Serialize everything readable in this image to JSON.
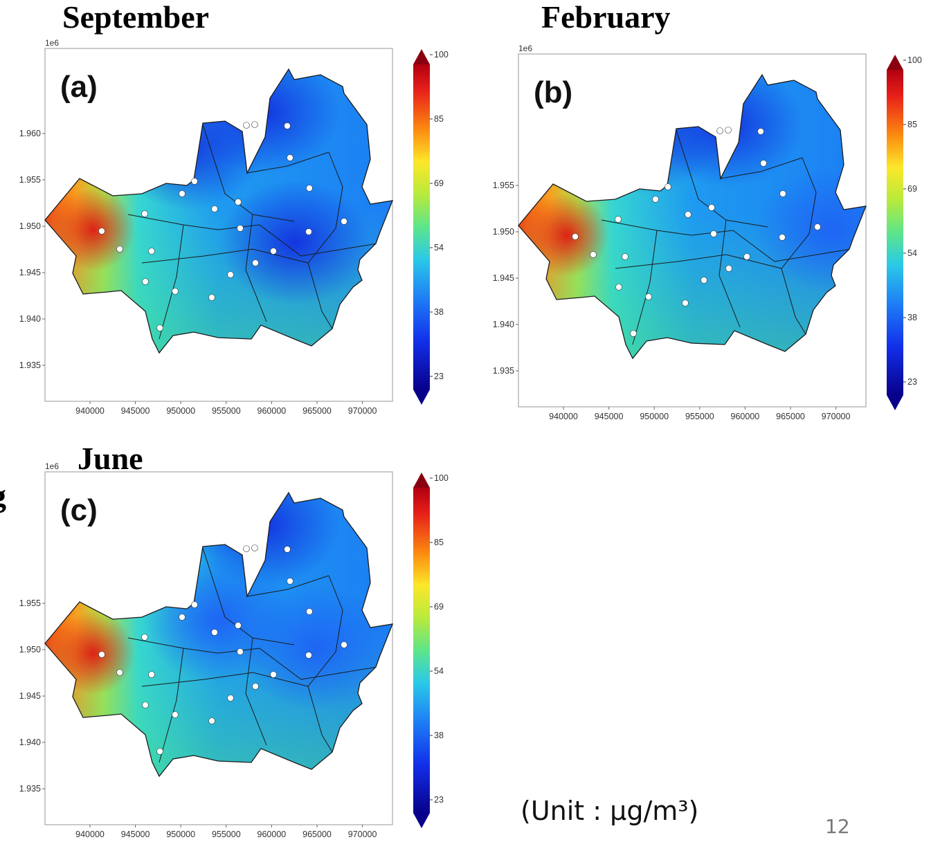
{
  "titles": {
    "a": "September",
    "b": "February",
    "c": "June"
  },
  "stray_char": "g",
  "panels": [
    {
      "id": "a",
      "label": "(a)",
      "offset_label": "1e6",
      "x_ticks": [
        "940000",
        "945000",
        "950000",
        "955000",
        "960000",
        "965000",
        "970000"
      ],
      "y_ticks": [
        "1.960",
        "1.955",
        "1.950",
        "1.945",
        "1.940",
        "1.935"
      ],
      "hotspots": [
        {
          "cx": 0.41,
          "cy": 0.28,
          "level": "low"
        },
        {
          "cx": 0.72,
          "cy": 0.55,
          "level": "low"
        },
        {
          "cx": 0.63,
          "cy": 0.18,
          "level": "low"
        }
      ]
    },
    {
      "id": "b",
      "label": "(b)",
      "offset_label": "1e6",
      "x_ticks": [
        "940000",
        "945000",
        "950000",
        "955000",
        "960000",
        "965000",
        "970000"
      ],
      "y_ticks": [
        "1.955",
        "1.950",
        "1.945",
        "1.940",
        "1.935"
      ],
      "hotspots": [
        {
          "cx": 0.36,
          "cy": 0.22,
          "level": "low"
        },
        {
          "cx": 0.6,
          "cy": 0.2,
          "level": "low"
        },
        {
          "cx": 0.9,
          "cy": 0.5,
          "level": "mid"
        }
      ]
    },
    {
      "id": "c",
      "label": "(c)",
      "offset_label": "1e6",
      "x_ticks": [
        "940000",
        "945000",
        "950000",
        "955000",
        "960000",
        "965000",
        "970000"
      ],
      "y_ticks": [
        "1.955",
        "1.950",
        "1.945",
        "1.940",
        "1.935"
      ],
      "hotspots": [
        {
          "cx": 0.63,
          "cy": 0.15,
          "level": "low"
        },
        {
          "cx": 0.5,
          "cy": 0.42,
          "level": "mid"
        },
        {
          "cx": 0.78,
          "cy": 0.5,
          "level": "mid"
        }
      ]
    }
  ],
  "colorbar_ticks": [
    "100",
    "85",
    "69",
    "54",
    "38",
    "23"
  ],
  "unit": "(Unit : μg/m³)",
  "page_number": "12"
}
